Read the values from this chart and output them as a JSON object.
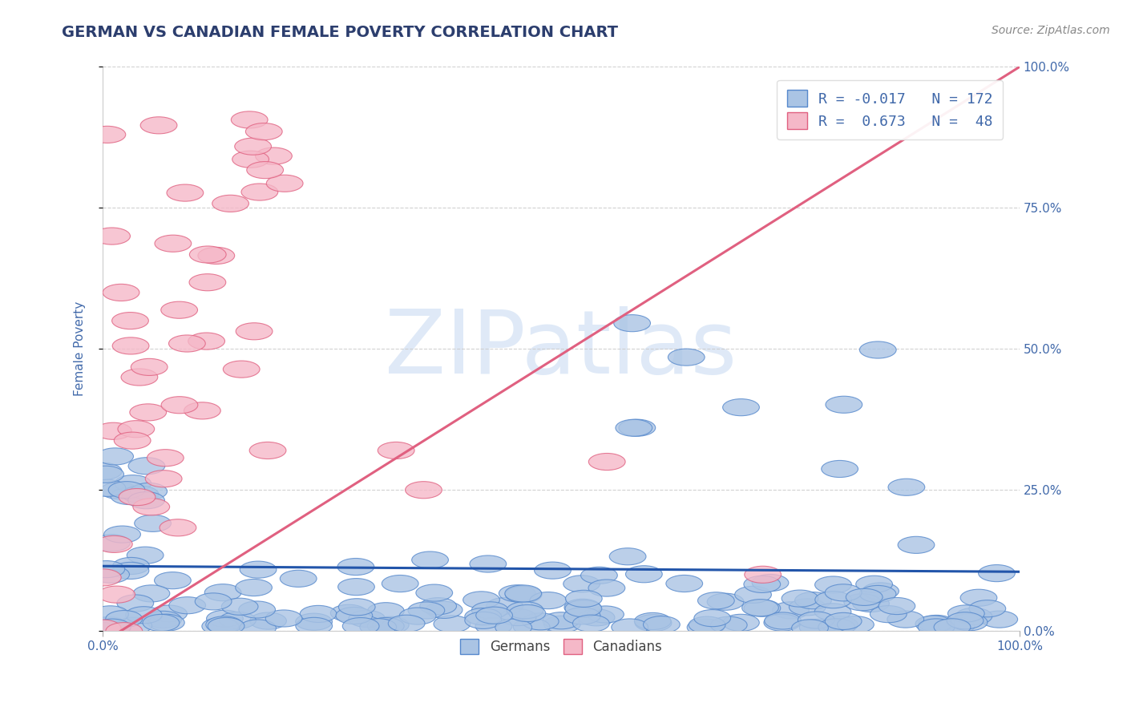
{
  "title": "GERMAN VS CANADIAN FEMALE POVERTY CORRELATION CHART",
  "source_text": "Source: ZipAtlas.com",
  "ylabel": "Female Poverty",
  "watermark": "ZIPatlas",
  "xlim": [
    0.0,
    1.0
  ],
  "ylim": [
    0.0,
    1.0
  ],
  "series": [
    {
      "name": "Germans",
      "color": "#aac4e4",
      "edge_color": "#5588cc",
      "R": -0.017,
      "N": 172,
      "line_color": "#2255aa"
    },
    {
      "name": "Canadians",
      "color": "#f5b8c8",
      "edge_color": "#e06080",
      "R": 0.673,
      "N": 48,
      "line_color": "#e06080"
    }
  ],
  "legend_color": "#4169aa",
  "title_color": "#2c3e6e",
  "source_color": "#888888",
  "axis_color": "#4169aa",
  "grid_color": "#cccccc",
  "background_color": "#ffffff"
}
